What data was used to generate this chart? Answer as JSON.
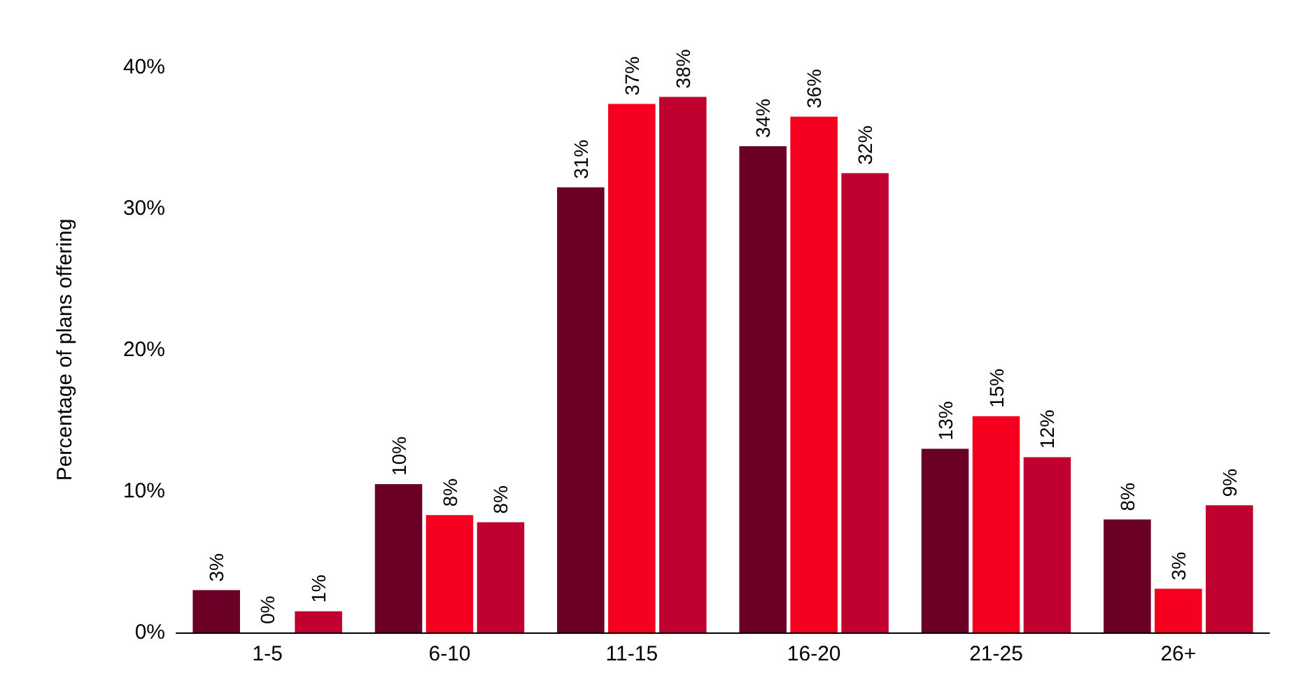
{
  "chart_data": {
    "type": "bar",
    "ylabel": "Percentage of plans offering",
    "categories": [
      "1-5",
      "6-10",
      "11-15",
      "16-20",
      "21-25",
      "26+"
    ],
    "series": [
      {
        "color": "#6a0026",
        "values": [
          3.0,
          10.5,
          31.5,
          34.4,
          13.0,
          8.0
        ],
        "value_labels": [
          "3%",
          "10%",
          "31%",
          "34%",
          "13%",
          "8%"
        ]
      },
      {
        "color": "#f5001e",
        "values": [
          0,
          8.3,
          37.4,
          36.5,
          15.3,
          3.1
        ],
        "value_labels": [
          "0%",
          "8%",
          "37%",
          "36%",
          "15%",
          "3%"
        ]
      },
      {
        "color": "#c0002f",
        "values": [
          1.5,
          7.8,
          37.9,
          32.5,
          12.4,
          9.0
        ],
        "value_labels": [
          "1%",
          "8%",
          "38%",
          "32%",
          "12%",
          "9%"
        ]
      }
    ],
    "ylim": [
      0,
      40
    ],
    "yticks": [
      {
        "value": 0,
        "label": "0%"
      },
      {
        "value": 10,
        "label": "10%"
      },
      {
        "value": 20,
        "label": "20%"
      },
      {
        "value": 30,
        "label": "30%"
      },
      {
        "value": 40,
        "label": "40%"
      }
    ],
    "grid": false
  }
}
